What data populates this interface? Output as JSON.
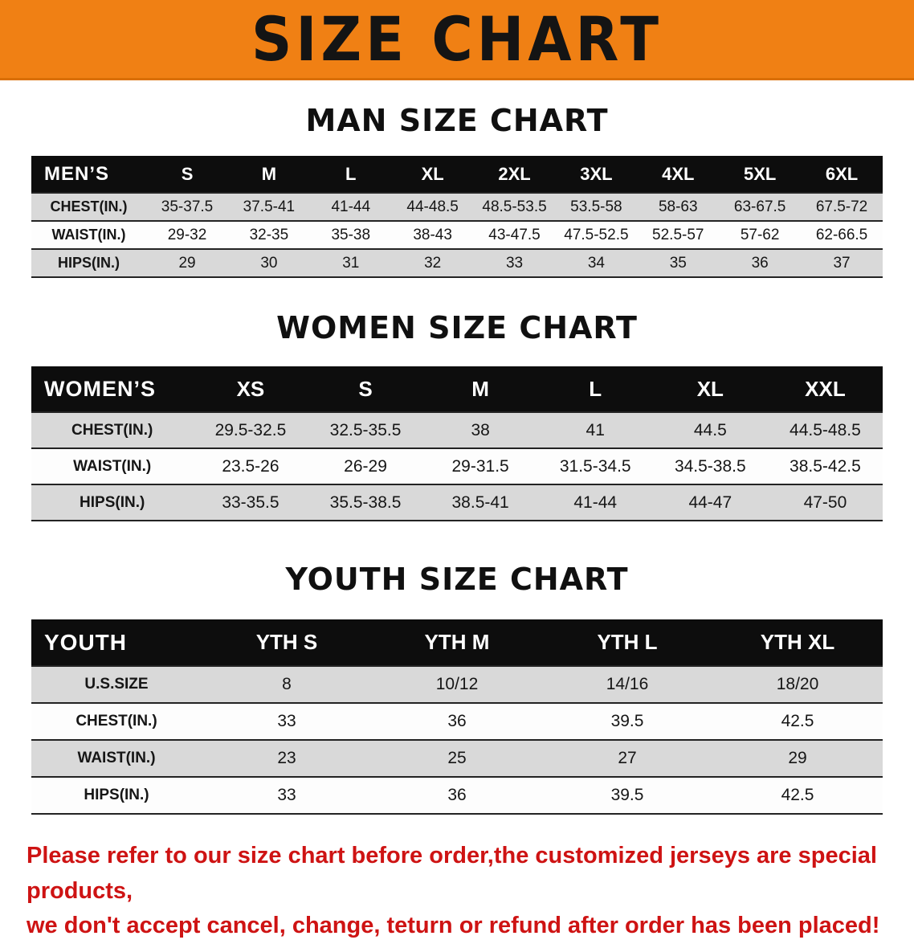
{
  "banner": {
    "title": "SIZE CHART",
    "bg_color": "#f08014"
  },
  "sections": [
    {
      "heading": "MAN SIZE CHART",
      "table": {
        "header_label": "MEN’S",
        "columns": [
          "S",
          "M",
          "L",
          "XL",
          "2XL",
          "3XL",
          "4XL",
          "5XL",
          "6XL"
        ],
        "rows": [
          {
            "label": "CHEST(IN.)",
            "values": [
              "35-37.5",
              "37.5-41",
              "41-44",
              "44-48.5",
              "48.5-53.5",
              "53.5-58",
              "58-63",
              "63-67.5",
              "67.5-72"
            ]
          },
          {
            "label": "WAIST(IN.)",
            "values": [
              "29-32",
              "32-35",
              "35-38",
              "38-43",
              "43-47.5",
              "47.5-52.5",
              "52.5-57",
              "57-62",
              "62-66.5"
            ]
          },
          {
            "label": "HIPS(IN.)",
            "values": [
              "29",
              "30",
              "31",
              "32",
              "33",
              "34",
              "35",
              "36",
              "37"
            ]
          }
        ]
      }
    },
    {
      "heading": "WOMEN SIZE CHART",
      "table": {
        "header_label": "WOMEN’S",
        "columns": [
          "XS",
          "S",
          "M",
          "L",
          "XL",
          "XXL"
        ],
        "rows": [
          {
            "label": "CHEST(IN.)",
            "values": [
              "29.5-32.5",
              "32.5-35.5",
              "38",
              "41",
              "44.5",
              "44.5-48.5"
            ]
          },
          {
            "label": "WAIST(IN.)",
            "values": [
              "23.5-26",
              "26-29",
              "29-31.5",
              "31.5-34.5",
              "34.5-38.5",
              "38.5-42.5"
            ]
          },
          {
            "label": "HIPS(IN.)",
            "values": [
              "33-35.5",
              "35.5-38.5",
              "38.5-41",
              "41-44",
              "44-47",
              "47-50"
            ]
          }
        ]
      }
    },
    {
      "heading": "YOUTH SIZE CHART",
      "table": {
        "header_label": "YOUTH",
        "columns": [
          "YTH S",
          "YTH M",
          "YTH L",
          "YTH XL"
        ],
        "rows": [
          {
            "label": "U.S.SIZE",
            "values": [
              "8",
              "10/12",
              "14/16",
              "18/20"
            ]
          },
          {
            "label": "CHEST(IN.)",
            "values": [
              "33",
              "36",
              "39.5",
              "42.5"
            ]
          },
          {
            "label": "WAIST(IN.)",
            "values": [
              "23",
              "25",
              "27",
              "29"
            ]
          },
          {
            "label": "HIPS(IN.)",
            "values": [
              "33",
              "36",
              "39.5",
              "42.5"
            ]
          }
        ]
      }
    }
  ],
  "footer": {
    "line1": "Please refer to our size chart before order,the customized jerseys are special products,",
    "line2": "we don't accept cancel, change, teturn or refund after order has been placed!",
    "text_color": "#ce1313"
  }
}
